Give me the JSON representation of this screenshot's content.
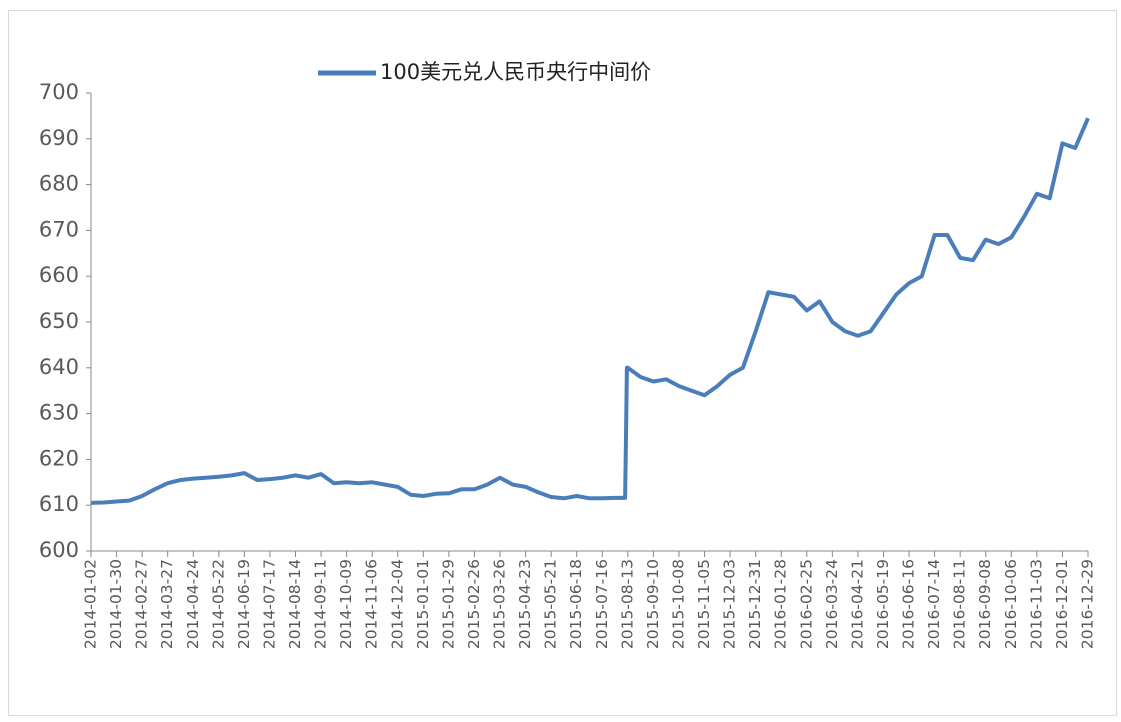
{
  "chart_data": {
    "type": "line",
    "x": [
      "2014-01-02",
      "2014-01-16",
      "2014-01-30",
      "2014-02-13",
      "2014-02-27",
      "2014-03-13",
      "2014-03-27",
      "2014-04-10",
      "2014-04-24",
      "2014-05-08",
      "2014-05-22",
      "2014-06-05",
      "2014-06-19",
      "2014-07-03",
      "2014-07-17",
      "2014-07-31",
      "2014-08-14",
      "2014-08-28",
      "2014-09-11",
      "2014-09-25",
      "2014-10-09",
      "2014-10-23",
      "2014-11-06",
      "2014-11-20",
      "2014-12-04",
      "2014-12-18",
      "2015-01-01",
      "2015-01-15",
      "2015-01-29",
      "2015-02-12",
      "2015-02-26",
      "2015-03-12",
      "2015-03-26",
      "2015-04-09",
      "2015-04-23",
      "2015-05-07",
      "2015-05-21",
      "2015-06-04",
      "2015-06-18",
      "2015-07-02",
      "2015-07-16",
      "2015-07-30",
      "2015-08-10",
      "2015-08-11",
      "2015-08-12",
      "2015-08-13",
      "2015-08-27",
      "2015-09-10",
      "2015-09-24",
      "2015-10-08",
      "2015-10-22",
      "2015-11-05",
      "2015-11-19",
      "2015-12-03",
      "2015-12-17",
      "2015-12-31",
      "2016-01-14",
      "2016-01-28",
      "2016-02-11",
      "2016-02-25",
      "2016-03-10",
      "2016-03-24",
      "2016-04-07",
      "2016-04-21",
      "2016-05-05",
      "2016-05-19",
      "2016-06-02",
      "2016-06-16",
      "2016-06-30",
      "2016-07-14",
      "2016-07-28",
      "2016-08-11",
      "2016-08-25",
      "2016-09-08",
      "2016-09-22",
      "2016-10-06",
      "2016-10-20",
      "2016-11-03",
      "2016-11-17",
      "2016-12-01",
      "2016-12-15",
      "2016-12-29"
    ],
    "series": [
      {
        "name": "100美元兑人民币央行中间价",
        "color": "#4a7ebb",
        "values": [
          610.5,
          610.6,
          610.8,
          611,
          612,
          613.5,
          614.8,
          615.5,
          615.8,
          616,
          616.2,
          616.5,
          617,
          615.5,
          615.7,
          616,
          616.5,
          616,
          616.8,
          614.8,
          615,
          614.8,
          615,
          614.5,
          614,
          612.3,
          612,
          612.5,
          612.6,
          613.5,
          613.5,
          614.5,
          616,
          614.5,
          614,
          612.8,
          611.8,
          611.5,
          612,
          611.5,
          611.5,
          611.6,
          611.6,
          625,
          640,
          640,
          638,
          637,
          637.5,
          636,
          635,
          634,
          636,
          638.5,
          640,
          648,
          656.5,
          656,
          655.5,
          652.5,
          654.5,
          650,
          648,
          647,
          648,
          652,
          656,
          658.5,
          660,
          669,
          669,
          664,
          663.5,
          668,
          667,
          668.5,
          673,
          678,
          677,
          689,
          688,
          694.5
        ]
      }
    ],
    "xlim": [
      "2014-01-02",
      "2016-12-29"
    ],
    "xticks": [
      "2014-01-02",
      "2014-01-30",
      "2014-02-27",
      "2014-03-27",
      "2014-04-24",
      "2014-05-22",
      "2014-06-19",
      "2014-07-17",
      "2014-08-14",
      "2014-09-11",
      "2014-10-09",
      "2014-11-06",
      "2014-12-04",
      "2015-01-01",
      "2015-01-29",
      "2015-02-26",
      "2015-03-26",
      "2015-04-23",
      "2015-05-21",
      "2015-06-18",
      "2015-07-16",
      "2015-08-13",
      "2015-09-10",
      "2015-10-08",
      "2015-11-05",
      "2015-12-03",
      "2015-12-31",
      "2016-01-28",
      "2016-02-25",
      "2016-03-24",
      "2016-04-21",
      "2016-05-19",
      "2016-06-16",
      "2016-07-14",
      "2016-08-11",
      "2016-09-08",
      "2016-10-06",
      "2016-11-03",
      "2016-12-01",
      "2016-12-29"
    ],
    "ylim": [
      600,
      700
    ],
    "yticks": [
      600,
      610,
      620,
      630,
      640,
      650,
      660,
      670,
      680,
      690,
      700
    ],
    "legend": "top"
  }
}
